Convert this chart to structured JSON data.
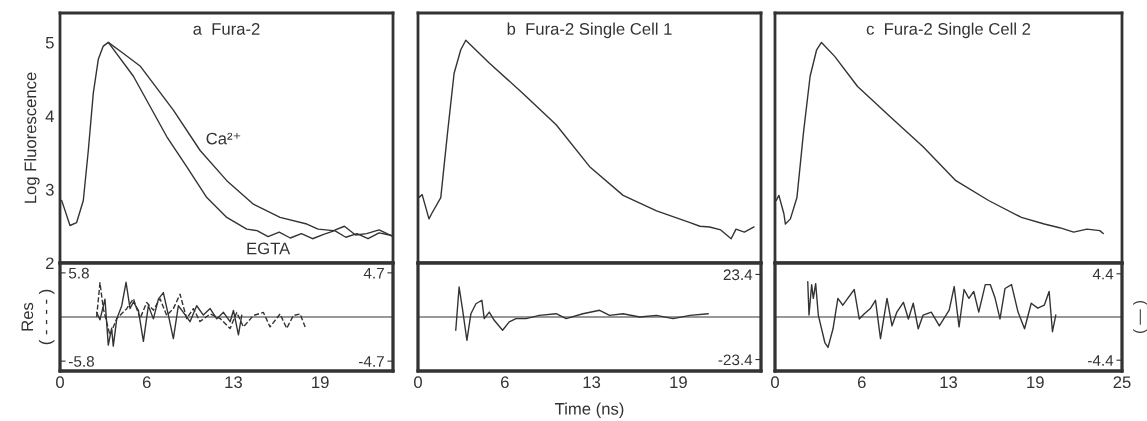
{
  "chart_data": [
    {
      "type": "line",
      "title": "a  Fura-2",
      "ylabel": "Log Fluorescence",
      "xlim": [
        0,
        24.0
      ],
      "ylim": [
        2,
        5.4
      ],
      "yticks": [
        2,
        3,
        4,
        5
      ],
      "tick_labels": "y",
      "grid": false,
      "legend": false,
      "series": [
        {
          "name": "EGTA",
          "color": "#333333",
          "x": [
            0.12,
            0.3,
            0.72,
            1.2,
            1.68,
            2.04,
            2.4,
            2.76,
            3.12,
            3.48,
            5.29,
            7.69,
            9.13,
            10.58,
            12.02,
            13.46,
            14.2,
            15.0,
            15.8,
            16.6,
            17.4,
            18.2,
            19.0,
            19.8,
            20.6,
            21.4,
            22.2,
            23.0,
            24.0
          ],
          "values": [
            2.85,
            2.75,
            2.51,
            2.55,
            2.85,
            3.53,
            4.31,
            4.77,
            4.95,
            5.0,
            4.54,
            3.72,
            3.31,
            2.89,
            2.62,
            2.46,
            2.44,
            2.36,
            2.42,
            2.34,
            2.4,
            2.33,
            2.39,
            2.44,
            2.35,
            2.4,
            2.33,
            2.41,
            2.37
          ]
        },
        {
          "name": "Ca²⁺",
          "color": "#333333",
          "x": [
            3.48,
            4.5,
            5.77,
            8.17,
            10.1,
            12.02,
            13.94,
            15.86,
            17.79,
            18.6,
            19.71,
            20.5,
            21.3,
            22.1,
            23.0,
            24.0
          ],
          "values": [
            5.0,
            4.86,
            4.68,
            4.08,
            3.53,
            3.12,
            2.8,
            2.62,
            2.53,
            2.46,
            2.44,
            2.5,
            2.38,
            2.4,
            2.45,
            2.36
          ]
        }
      ]
    },
    {
      "type": "line",
      "title": "b  Fura-2 Single Cell 1",
      "xlim": [
        0,
        24.7
      ],
      "ylim": [
        2,
        5.4
      ],
      "yticks": [
        2,
        3,
        4,
        5
      ],
      "tick_labels": false,
      "grid": false,
      "legend": false,
      "series": [
        {
          "color": "#333333",
          "x": [
            0.07,
            0.3,
            0.79,
            1.01,
            1.64,
            2.12,
            2.6,
            3.08,
            3.44,
            5.13,
            7.54,
            9.95,
            12.36,
            14.77,
            17.18,
            19.59,
            20.3,
            21.0,
            21.8,
            22.55,
            22.9,
            23.5,
            24.2
          ],
          "values": [
            2.89,
            2.93,
            2.6,
            2.68,
            2.89,
            3.76,
            4.58,
            4.9,
            5.03,
            4.72,
            4.31,
            3.88,
            3.31,
            2.92,
            2.71,
            2.55,
            2.5,
            2.49,
            2.45,
            2.33,
            2.46,
            2.42,
            2.49
          ]
        }
      ]
    },
    {
      "type": "line",
      "title": "c  Fura-2 Single Cell 2",
      "xlim": [
        0,
        25
      ],
      "ylim": [
        2,
        5.4
      ],
      "yticks": [
        2,
        3,
        4,
        5
      ],
      "tick_labels": false,
      "grid": false,
      "legend": false,
      "series": [
        {
          "color": "#333333",
          "x": [
            0.09,
            0.28,
            0.64,
            0.75,
            1.11,
            1.58,
            2.05,
            2.53,
            3.0,
            3.35,
            4.3,
            5.95,
            8.3,
            10.67,
            13.03,
            15.39,
            17.75,
            19.4,
            20.5,
            21.52,
            22.47,
            23.4,
            23.65
          ],
          "values": [
            2.85,
            2.92,
            2.67,
            2.53,
            2.6,
            2.89,
            3.77,
            4.54,
            4.9,
            5.0,
            4.81,
            4.4,
            3.99,
            3.58,
            3.12,
            2.85,
            2.62,
            2.53,
            2.48,
            2.42,
            2.46,
            2.44,
            2.4
          ]
        }
      ]
    },
    {
      "type": "line",
      "ylabel": "Res\n( - - - - )",
      "xlim": [
        0,
        24.0
      ],
      "xticks": [
        0,
        {
          "value": 6.25,
          "label": "6"
        },
        {
          "value": 12.5,
          "label": "13"
        },
        {
          "value": 18.75,
          "label": "19"
        }
      ],
      "ylim": [
        -7.1,
        7.1
      ],
      "yticks": [
        -5.8,
        5.8
      ],
      "y2lim": [
        -5.75,
        5.75
      ],
      "y2ticks": [
        -4.7,
        4.7
      ],
      "grid": false,
      "legend": false,
      "ref_lines": [
        {
          "axis": "y",
          "value": 0,
          "color": "#333333"
        }
      ],
      "series": [
        {
          "color": "#333333",
          "line_style": "dashed",
          "axis": "y",
          "x": [
            2.64,
            2.88,
            3.12,
            3.6,
            4.09,
            4.81,
            5.29,
            5.77,
            6.25,
            6.73,
            7.21,
            7.69,
            8.17,
            8.65,
            9.13,
            9.61,
            10.09,
            10.82,
            11.54,
            12.26,
            12.74,
            13.22,
            13.94,
            14.66,
            15.14,
            15.86,
            16.34,
            16.82,
            17.3,
            17.67
          ],
          "values": [
            0,
            4.5,
            1.1,
            -2.4,
            -0.2,
            1.1,
            2.4,
            -0.2,
            1.9,
            0.9,
            2.4,
            0.2,
            1.1,
            3.0,
            -0.2,
            1.1,
            -0.6,
            0.4,
            -0.2,
            -1.5,
            0.6,
            -1.3,
            0.2,
            0.6,
            -1.3,
            0.4,
            -1.5,
            0.2,
            0.4,
            -1.3
          ]
        },
        {
          "color": "#333333",
          "line_style": "solid",
          "axis": "y2",
          "x": [
            2.64,
            2.88,
            3.24,
            3.48,
            3.72,
            3.84,
            4.09,
            4.45,
            4.76,
            5.05,
            5.29,
            5.65,
            6.01,
            6.37,
            6.73,
            7.09,
            7.45,
            7.81,
            8.17,
            8.53,
            8.89,
            9.37,
            9.85,
            10.33,
            10.82,
            11.3,
            11.78,
            12.26,
            12.5,
            12.86,
            13.1
          ],
          "values": [
            0.5,
            -0.3,
            1.9,
            -3.0,
            -1.2,
            -3.1,
            -0.2,
            1.2,
            3.7,
            0.9,
            1.6,
            0.7,
            -2.6,
            1.2,
            -0.2,
            1.9,
            2.6,
            0.2,
            -2.3,
            1.2,
            0.5,
            -0.5,
            1.2,
            0.2,
            0.9,
            -0.2,
            0.5,
            -0.5,
            0.7,
            -1.9,
            0.2
          ]
        }
      ]
    },
    {
      "type": "line",
      "xlabel": "Time (ns)",
      "xlim": [
        0,
        24.7
      ],
      "xticks": [
        0,
        {
          "value": 6.25,
          "label": "6"
        },
        {
          "value": 12.5,
          "label": "13"
        },
        {
          "value": 18.75,
          "label": "19"
        }
      ],
      "y2lim": [
        -29.7,
        29.7
      ],
      "y2ticks": [
        -23.4,
        23.4
      ],
      "grid": false,
      "legend": false,
      "ref_lines": [
        {
          "axis": "y2",
          "value": 0,
          "color": "#333333"
        }
      ],
      "series": [
        {
          "color": "#333333",
          "axis": "y2",
          "x": [
            2.72,
            2.96,
            3.2,
            3.52,
            3.81,
            4.17,
            4.6,
            4.77,
            5.13,
            5.49,
            6.09,
            6.57,
            7.06,
            7.78,
            8.74,
            9.95,
            10.67,
            11.87,
            13.08,
            13.8,
            14.76,
            15.97,
            17.17,
            18.37,
            19.58,
            20.9
          ],
          "values": [
            -7.3,
            16.5,
            4.6,
            -12.8,
            1.8,
            7.3,
            9.2,
            -0.9,
            2.7,
            -1.8,
            -7.3,
            -2.7,
            -0.9,
            -0.9,
            0.9,
            1.8,
            -0.9,
            1.8,
            3.7,
            0.9,
            1.8,
            0,
            0.9,
            -0.9,
            0.9,
            1.8
          ]
        }
      ]
    },
    {
      "type": "line",
      "y2label": "( — )",
      "xlim": [
        0,
        25
      ],
      "xticks": [
        0,
        {
          "value": 6.25,
          "label": "6"
        },
        {
          "value": 12.5,
          "label": "13"
        },
        {
          "value": 18.75,
          "label": "19"
        },
        25
      ],
      "y2lim": [
        -5.5,
        5.5
      ],
      "y2ticks": [
        -4.4,
        4.4
      ],
      "grid": false,
      "legend": false,
      "ref_lines": [
        {
          "axis": "y2",
          "value": 0,
          "color": "#333333"
        }
      ],
      "series": [
        {
          "color": "#333333",
          "axis": "y2",
          "x": [
            2.36,
            2.45,
            2.64,
            2.76,
            2.93,
            3.12,
            3.59,
            3.82,
            4.18,
            4.53,
            4.89,
            5.24,
            5.71,
            6.07,
            6.42,
            6.89,
            7.24,
            7.6,
            8.07,
            8.43,
            8.78,
            9.25,
            9.61,
            9.96,
            10.32,
            10.67,
            11.26,
            11.84,
            12.55,
            12.91,
            13.26,
            13.62,
            13.97,
            14.32,
            14.68,
            15.15,
            15.51,
            15.86,
            16.21,
            16.57,
            17.04,
            17.51,
            17.98,
            18.46,
            18.93,
            19.4,
            19.75,
            19.99,
            20.23
          ],
          "values": [
            3.6,
            0.2,
            3.3,
            1.9,
            3.4,
            0.2,
            -2.6,
            -3.1,
            -1.2,
            1.9,
            1.2,
            1.9,
            2.8,
            -0.2,
            0.3,
            0.9,
            1.7,
            -2.2,
            1.9,
            -0.9,
            0.5,
            1.5,
            -0.2,
            1.4,
            -1.2,
            0.2,
            0.5,
            -0.9,
            0.7,
            3.1,
            -1.0,
            2.8,
            1.9,
            2.6,
            0.5,
            3.3,
            3.3,
            1.9,
            -0.2,
            2.9,
            3.3,
            0.5,
            -1.2,
            1.4,
            0.9,
            1.2,
            2.6,
            -1.5,
            0.2
          ]
        }
      ]
    }
  ]
}
